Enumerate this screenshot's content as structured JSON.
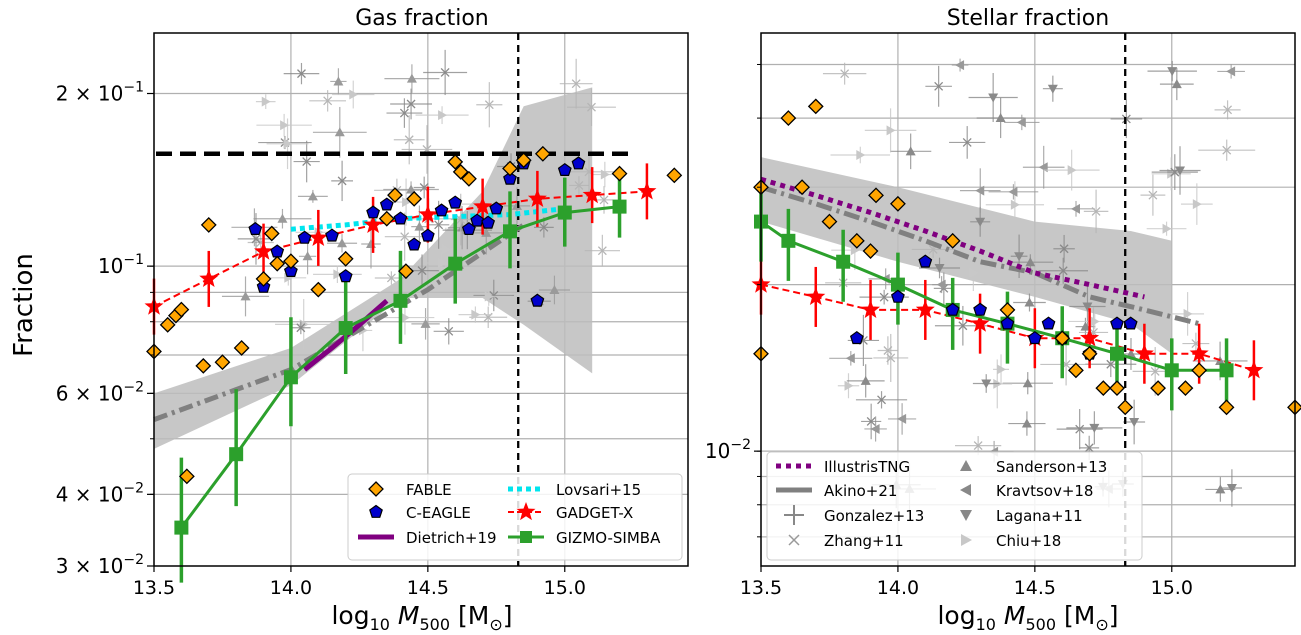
{
  "figure": {
    "ylabel": "Fraction",
    "xlabel_prefix": "log",
    "xlabel_sub": "10",
    "xlabel_var": "M",
    "xlabel_var_sub": "500",
    "xlabel_unit": "[M",
    "xlabel_unit_sub": "⊙",
    "xlabel_close": "]"
  },
  "chart_data": [
    {
      "type": "line",
      "title": "Gas fraction",
      "xlim": [
        13.5,
        15.45
      ],
      "ylim": [
        0.03,
        0.255
      ],
      "yscale": "log",
      "grid": true,
      "xticks": [
        "13.5",
        "14.0",
        "14.5",
        "15.0"
      ],
      "ytick_labels": [
        {
          "value": 0.2,
          "mant": "2 × 10",
          "exp": "−1"
        },
        {
          "value": 0.1,
          "mant": "10",
          "exp": "−1"
        },
        {
          "value": 0.06,
          "mant": "6 × 10",
          "exp": "−2"
        },
        {
          "value": 0.04,
          "mant": "4 × 10",
          "exp": "−2"
        },
        {
          "value": 0.03,
          "mant": "3 × 10",
          "exp": "−2"
        }
      ],
      "reference_lines": {
        "cosmic_baryon_fraction": 0.157,
        "vertical_mass": 14.83
      },
      "legend_position": "lower-right",
      "series": [
        {
          "name": "FABLE",
          "marker": "diamond",
          "color": "#ffa500",
          "x": [
            13.5,
            13.55,
            13.58,
            13.6,
            13.62,
            13.68,
            13.7,
            13.75,
            13.82,
            13.9,
            13.93,
            13.95,
            14.0,
            14.1,
            14.2,
            14.35,
            14.38,
            14.42,
            14.45,
            14.6,
            14.62,
            14.65,
            14.8,
            14.85,
            14.92,
            15.2,
            15.4
          ],
          "y": [
            0.071,
            0.079,
            0.082,
            0.084,
            0.043,
            0.067,
            0.118,
            0.068,
            0.072,
            0.095,
            0.114,
            0.101,
            0.102,
            0.091,
            0.103,
            0.121,
            0.133,
            0.098,
            0.131,
            0.152,
            0.146,
            0.142,
            0.148,
            0.153,
            0.157,
            0.145,
            0.144
          ]
        },
        {
          "name": "C-EAGLE",
          "marker": "pentagon",
          "color": "#0000cc",
          "x": [
            13.87,
            13.9,
            13.95,
            14.0,
            14.05,
            14.15,
            14.2,
            14.3,
            14.35,
            14.4,
            14.45,
            14.5,
            14.55,
            14.6,
            14.65,
            14.68,
            14.72,
            14.75,
            14.8,
            14.85,
            14.9,
            15.0,
            15.05
          ],
          "y": [
            0.116,
            0.092,
            0.106,
            0.098,
            0.112,
            0.113,
            0.096,
            0.124,
            0.128,
            0.121,
            0.109,
            0.113,
            0.125,
            0.129,
            0.116,
            0.12,
            0.119,
            0.126,
            0.142,
            0.151,
            0.087,
            0.147,
            0.151
          ]
        },
        {
          "name": "Dietrich+19",
          "color": "#800080",
          "x": [
            14.05,
            14.15,
            14.25,
            14.35
          ],
          "y": [
            0.066,
            0.072,
            0.079,
            0.087
          ]
        },
        {
          "name": "Lovsari+15",
          "color": "#00e5ee",
          "x": [
            14.0,
            14.2,
            14.4,
            14.6,
            14.8,
            15.0
          ],
          "y": [
            0.116,
            0.118,
            0.121,
            0.122,
            0.123,
            0.126
          ]
        },
        {
          "name": "GADGET-X",
          "marker": "star",
          "color": "#ff0000",
          "x": [
            13.5,
            13.7,
            13.9,
            14.1,
            14.3,
            14.5,
            14.7,
            14.9,
            15.1,
            15.3
          ],
          "y": [
            0.085,
            0.095,
            0.106,
            0.112,
            0.118,
            0.123,
            0.127,
            0.131,
            0.133,
            0.135
          ]
        },
        {
          "name": "GIZMO-SIMBA",
          "marker": "square",
          "color": "#2ca02c",
          "x": [
            13.6,
            13.8,
            14.0,
            14.2,
            14.4,
            14.6,
            14.8,
            15.0,
            15.2
          ],
          "y": [
            0.035,
            0.047,
            0.064,
            0.078,
            0.087,
            0.101,
            0.115,
            0.124,
            0.127
          ]
        }
      ]
    },
    {
      "type": "line",
      "title": "Stellar fraction",
      "xlim": [
        13.5,
        15.45
      ],
      "ylim": [
        0.0062,
        0.057
      ],
      "yscale": "log",
      "grid": true,
      "xticks": [
        "13.5",
        "14.0",
        "14.5",
        "15.0"
      ],
      "ytick_labels": [
        {
          "value": 0.01,
          "mant": "10",
          "exp": "−2"
        }
      ],
      "reference_lines": {
        "vertical_mass": 14.83
      },
      "legend_position": "lower-left",
      "series": [
        {
          "name": "FABLE",
          "color": "#ffa500",
          "marker": "diamond",
          "x": [
            13.5,
            13.5,
            13.6,
            13.65,
            13.7,
            13.75,
            13.85,
            13.9,
            13.92,
            14.0,
            14.2,
            14.4,
            14.6,
            14.65,
            14.7,
            14.75,
            14.8,
            14.83,
            14.95,
            15.05,
            15.1,
            15.2,
            15.45
          ],
          "y": [
            0.03,
            0.015,
            0.04,
            0.03,
            0.042,
            0.026,
            0.024,
            0.023,
            0.029,
            0.028,
            0.024,
            0.018,
            0.016,
            0.014,
            0.015,
            0.013,
            0.013,
            0.012,
            0.013,
            0.013,
            0.014,
            0.012,
            0.012
          ]
        },
        {
          "name": "C-EAGLE",
          "color": "#0000cc",
          "marker": "pentagon",
          "x": [
            13.85,
            14.0,
            14.1,
            14.2,
            14.3,
            14.4,
            14.5,
            14.55,
            14.6,
            14.7,
            14.8,
            14.85
          ],
          "y": [
            0.016,
            0.019,
            0.022,
            0.018,
            0.018,
            0.017,
            0.016,
            0.017,
            0.016,
            0.015,
            0.017,
            0.017
          ]
        },
        {
          "name": "IllustrisTNG",
          "color": "#800080",
          "x": [
            13.5,
            13.7,
            13.9,
            14.1,
            14.3,
            14.5,
            14.7,
            14.9
          ],
          "y": [
            0.031,
            0.029,
            0.027,
            0.025,
            0.023,
            0.021,
            0.02,
            0.019
          ]
        },
        {
          "name": "Akino+21",
          "color": "#808080",
          "x": [
            13.5,
            13.7,
            13.9,
            14.1,
            14.3,
            14.5,
            14.7,
            14.9,
            15.1
          ],
          "y": [
            0.03,
            0.028,
            0.026,
            0.024,
            0.022,
            0.021,
            0.019,
            0.018,
            0.017
          ]
        },
        {
          "name": "GADGET-X",
          "color": "#ff0000",
          "marker": "star",
          "x": [
            13.5,
            13.7,
            13.9,
            14.1,
            14.3,
            14.5,
            14.7,
            14.9,
            15.1,
            15.3
          ],
          "y": [
            0.02,
            0.019,
            0.018,
            0.018,
            0.017,
            0.016,
            0.016,
            0.015,
            0.015,
            0.014
          ]
        },
        {
          "name": "GIZMO-SIMBA",
          "color": "#2ca02c",
          "marker": "square",
          "x": [
            13.5,
            13.6,
            13.8,
            14.0,
            14.2,
            14.4,
            14.6,
            14.8,
            15.0,
            15.2
          ],
          "y": [
            0.026,
            0.024,
            0.022,
            0.02,
            0.018,
            0.017,
            0.016,
            0.015,
            0.014,
            0.014
          ]
        }
      ],
      "legend_entries": [
        "IllustrisTNG",
        "Akino+21",
        "Gonzalez+13",
        "Zhang+11",
        "Sanderson+13",
        "Kravtsov+18",
        "Lagana+11",
        "Chiu+18"
      ]
    }
  ]
}
